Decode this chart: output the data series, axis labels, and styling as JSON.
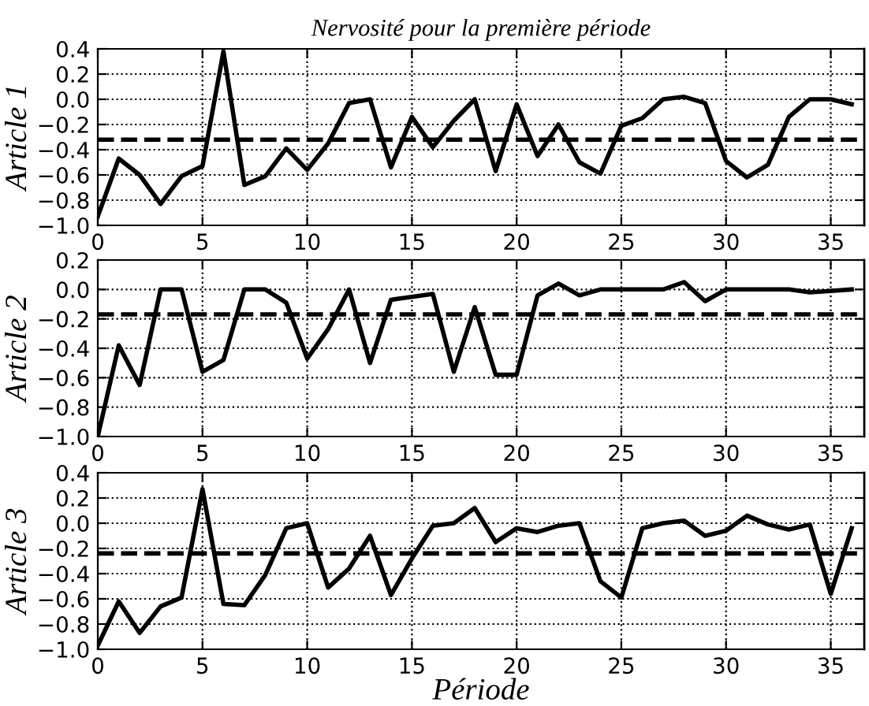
{
  "chart_data": [
    {
      "type": "line",
      "title": "Nervosité pour la première période",
      "ylabel": "Article 1",
      "x": [
        0,
        1,
        2,
        3,
        4,
        5,
        6,
        7,
        8,
        9,
        10,
        11,
        12,
        13,
        14,
        15,
        16,
        17,
        18,
        19,
        20,
        21,
        22,
        23,
        24,
        25,
        26,
        27,
        28,
        29,
        30,
        31,
        32,
        33,
        34,
        35,
        36
      ],
      "series": [
        {
          "color": "#000000",
          "values": [
            -0.93,
            -0.47,
            -0.6,
            -0.83,
            -0.61,
            -0.53,
            0.38,
            -0.68,
            -0.61,
            -0.39,
            -0.56,
            -0.35,
            -0.03,
            0.0,
            -0.54,
            -0.14,
            -0.38,
            -0.17,
            0.0,
            -0.57,
            -0.04,
            -0.45,
            -0.2,
            -0.5,
            -0.59,
            -0.21,
            -0.15,
            0.0,
            0.02,
            -0.03,
            -0.49,
            -0.62,
            -0.52,
            -0.14,
            0.0,
            0.0,
            -0.04
          ]
        }
      ],
      "xlim": [
        0,
        36.6
      ],
      "xticks": [
        0,
        5,
        10,
        15,
        20,
        25,
        30,
        35
      ],
      "ylim": [
        -1.0,
        0.4
      ],
      "yticks": [
        {
          "value": -1.0,
          "label": "−1.0"
        },
        {
          "value": -0.8,
          "label": "−0.8"
        },
        {
          "value": -0.6,
          "label": "−0.6"
        },
        {
          "value": -0.4,
          "label": "−0.4"
        },
        {
          "value": -0.2,
          "label": "−0.2"
        },
        {
          "value": 0.0,
          "label": "0.0"
        },
        {
          "value": 0.2,
          "label": "0.2"
        },
        {
          "value": 0.4,
          "label": "0.4"
        }
      ],
      "ref_lines": [
        {
          "axis": "y",
          "value": -0.32,
          "color": "#000000",
          "line_style": "dashed"
        }
      ],
      "grid": true,
      "line_style": "solid",
      "marker": "none"
    },
    {
      "type": "line",
      "ylabel": "Article 2",
      "x": [
        0,
        1,
        2,
        3,
        4,
        5,
        6,
        7,
        8,
        9,
        10,
        11,
        12,
        13,
        14,
        15,
        16,
        17,
        18,
        19,
        20,
        21,
        22,
        23,
        24,
        25,
        26,
        27,
        28,
        29,
        30,
        31,
        32,
        33,
        34,
        35,
        36
      ],
      "series": [
        {
          "color": "#000000",
          "values": [
            -1.0,
            -0.38,
            -0.65,
            0.0,
            0.0,
            -0.56,
            -0.48,
            0.0,
            0.0,
            -0.09,
            -0.47,
            -0.27,
            0.0,
            -0.5,
            -0.07,
            -0.05,
            -0.03,
            -0.56,
            -0.12,
            -0.58,
            -0.58,
            -0.04,
            0.04,
            -0.04,
            0.0,
            0.0,
            0.0,
            0.0,
            0.05,
            -0.08,
            0.0,
            0.0,
            0.0,
            0.0,
            -0.02,
            -0.01,
            0.0
          ]
        }
      ],
      "xlim": [
        0,
        36.6
      ],
      "xticks": [
        0,
        5,
        10,
        15,
        20,
        25,
        30,
        35
      ],
      "ylim": [
        -1.0,
        0.2
      ],
      "yticks": [
        {
          "value": -1.0,
          "label": "−1.0"
        },
        {
          "value": -0.8,
          "label": "−0.8"
        },
        {
          "value": -0.6,
          "label": "−0.6"
        },
        {
          "value": -0.4,
          "label": "−0.4"
        },
        {
          "value": -0.2,
          "label": "−0.2"
        },
        {
          "value": 0.0,
          "label": "0.0"
        },
        {
          "value": 0.2,
          "label": "0.2"
        }
      ],
      "ref_lines": [
        {
          "axis": "y",
          "value": -0.17,
          "color": "#000000",
          "line_style": "dashed"
        }
      ],
      "grid": true,
      "line_style": "solid",
      "marker": "none"
    },
    {
      "type": "line",
      "ylabel": "Article 3",
      "xlabel": "Période",
      "x": [
        0,
        1,
        2,
        3,
        4,
        5,
        6,
        7,
        8,
        9,
        10,
        11,
        12,
        13,
        14,
        15,
        16,
        17,
        18,
        19,
        20,
        21,
        22,
        23,
        24,
        25,
        26,
        27,
        28,
        29,
        30,
        31,
        32,
        33,
        34,
        35,
        36
      ],
      "series": [
        {
          "color": "#000000",
          "values": [
            -0.97,
            -0.62,
            -0.87,
            -0.66,
            -0.59,
            0.27,
            -0.64,
            -0.65,
            -0.41,
            -0.04,
            0.0,
            -0.51,
            -0.36,
            -0.1,
            -0.57,
            -0.28,
            -0.02,
            0.0,
            0.12,
            -0.15,
            -0.04,
            -0.07,
            -0.02,
            0.0,
            -0.46,
            -0.59,
            -0.04,
            0.0,
            0.02,
            -0.1,
            -0.06,
            0.06,
            -0.01,
            -0.05,
            -0.01,
            -0.56,
            -0.04
          ]
        }
      ],
      "xlim": [
        0,
        36.6
      ],
      "xticks": [
        0,
        5,
        10,
        15,
        20,
        25,
        30,
        35
      ],
      "ylim": [
        -1.0,
        0.4
      ],
      "yticks": [
        {
          "value": -1.0,
          "label": "−1.0"
        },
        {
          "value": -0.8,
          "label": "−0.8"
        },
        {
          "value": -0.6,
          "label": "−0.6"
        },
        {
          "value": -0.4,
          "label": "−0.4"
        },
        {
          "value": -0.2,
          "label": "−0.2"
        },
        {
          "value": 0.0,
          "label": "0.0"
        },
        {
          "value": 0.2,
          "label": "0.2"
        },
        {
          "value": 0.4,
          "label": "0.4"
        }
      ],
      "ref_lines": [
        {
          "axis": "y",
          "value": -0.24,
          "color": "#000000",
          "line_style": "dashed"
        }
      ],
      "grid": true,
      "line_style": "solid",
      "marker": "none"
    }
  ]
}
